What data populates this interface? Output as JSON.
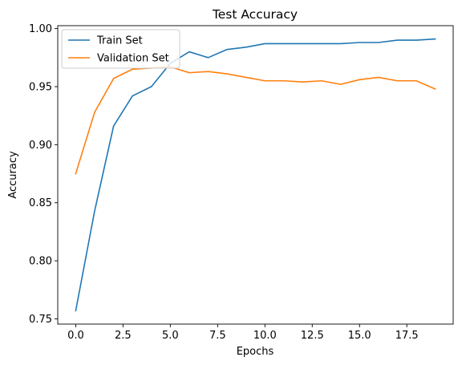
{
  "chart_data": {
    "type": "line",
    "title": "Test Accuracy",
    "xlabel": "Epochs",
    "ylabel": "Accuracy",
    "x": [
      0,
      1,
      2,
      3,
      4,
      5,
      6,
      7,
      8,
      9,
      10,
      11,
      12,
      13,
      14,
      15,
      16,
      17,
      18,
      19
    ],
    "xlim": [
      -0.95,
      19.95
    ],
    "ylim": [
      0.7455,
      1.0025
    ],
    "xticks": [
      0.0,
      2.5,
      5.0,
      7.5,
      10.0,
      12.5,
      15.0,
      17.5
    ],
    "xtick_labels": [
      "0.0",
      "2.5",
      "5.0",
      "7.5",
      "10.0",
      "12.5",
      "15.0",
      "17.5"
    ],
    "yticks": [
      0.75,
      0.8,
      0.85,
      0.9,
      0.95,
      1.0
    ],
    "ytick_labels": [
      "0.75",
      "0.80",
      "0.85",
      "0.90",
      "0.95",
      "1.00"
    ],
    "grid": false,
    "legend": "upper-left",
    "series": [
      {
        "name": "Train Set",
        "color": "#1f77b4",
        "values": [
          0.757,
          0.843,
          0.916,
          0.942,
          0.95,
          0.97,
          0.98,
          0.975,
          0.982,
          0.984,
          0.987,
          0.987,
          0.987,
          0.987,
          0.987,
          0.988,
          0.988,
          0.99,
          0.99,
          0.991
        ]
      },
      {
        "name": "Validation Set",
        "color": "#ff7f0e",
        "values": [
          0.875,
          0.928,
          0.957,
          0.965,
          0.966,
          0.967,
          0.962,
          0.963,
          0.961,
          0.958,
          0.955,
          0.955,
          0.954,
          0.955,
          0.952,
          0.956,
          0.958,
          0.955,
          0.955,
          0.948
        ]
      }
    ]
  }
}
